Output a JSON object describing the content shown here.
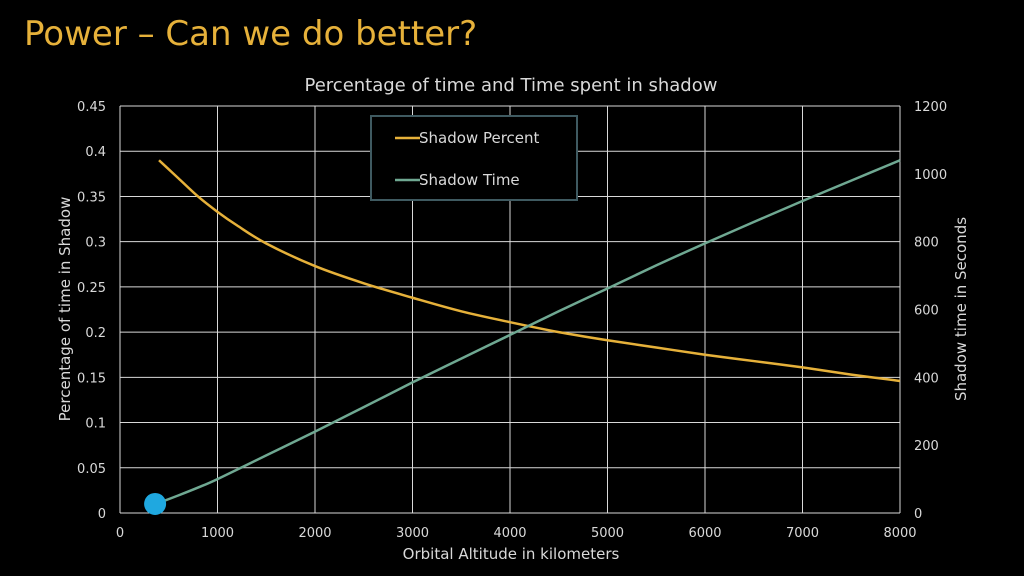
{
  "slide": {
    "title": "Power – Can we do better?"
  },
  "colors": {
    "background": "#000000",
    "title": "#e6b13a",
    "grid": "#d9d9d9",
    "text": "#d9d9d9",
    "shadow_percent": "#e6b13a",
    "shadow_time": "#6fa892",
    "marker": "#1fa8e0",
    "legend_border": "#3f5a61"
  },
  "chart_data": {
    "type": "line",
    "title": "Percentage of time and Time spent in shadow",
    "xlabel": "Orbital Altitude in kilometers",
    "ylabel": "Percentage of time  in Shadow",
    "y2label": "Shadow time in Seconds",
    "xlim": [
      0,
      8000
    ],
    "ylim": [
      0,
      0.45
    ],
    "y2lim": [
      0,
      1200
    ],
    "xticks": [
      "0",
      "1000",
      "2000",
      "3000",
      "4000",
      "5000",
      "6000",
      "7000",
      "8000"
    ],
    "yticks": [
      "0",
      "0.05",
      "0.1",
      "0.15",
      "0.2",
      "0.25",
      "0.3",
      "0.35",
      "0.4",
      "0.45"
    ],
    "y2ticks": [
      "0",
      "200",
      "400",
      "600",
      "800",
      "1000",
      "1200"
    ],
    "grid": true,
    "legend_position": "top-center",
    "series": [
      {
        "name": "Shadow Percent",
        "axis": "left",
        "x": [
          400,
          500,
          600,
          800,
          1000,
          1200,
          1500,
          2000,
          2500,
          3000,
          3500,
          4000,
          4500,
          5000,
          5500,
          6000,
          6500,
          7000,
          7500,
          8000
        ],
        "y": [
          0.39,
          0.38,
          0.37,
          0.35,
          0.333,
          0.318,
          0.298,
          0.273,
          0.254,
          0.238,
          0.223,
          0.211,
          0.2,
          0.191,
          0.183,
          0.175,
          0.168,
          0.161,
          0.153,
          0.146
        ]
      },
      {
        "name": "Shadow Time",
        "axis": "right",
        "x": [
          400,
          600,
          800,
          1000,
          1500,
          2000,
          2500,
          3000,
          3500,
          4000,
          4500,
          5000,
          5500,
          6000,
          6500,
          7000,
          7500,
          8000
        ],
        "y": [
          30,
          52,
          75,
          100,
          170,
          240,
          312,
          385,
          455,
          525,
          595,
          662,
          730,
          795,
          858,
          920,
          980,
          1040
        ]
      }
    ],
    "marker_point": {
      "x": 360,
      "y": 0.01
    }
  }
}
